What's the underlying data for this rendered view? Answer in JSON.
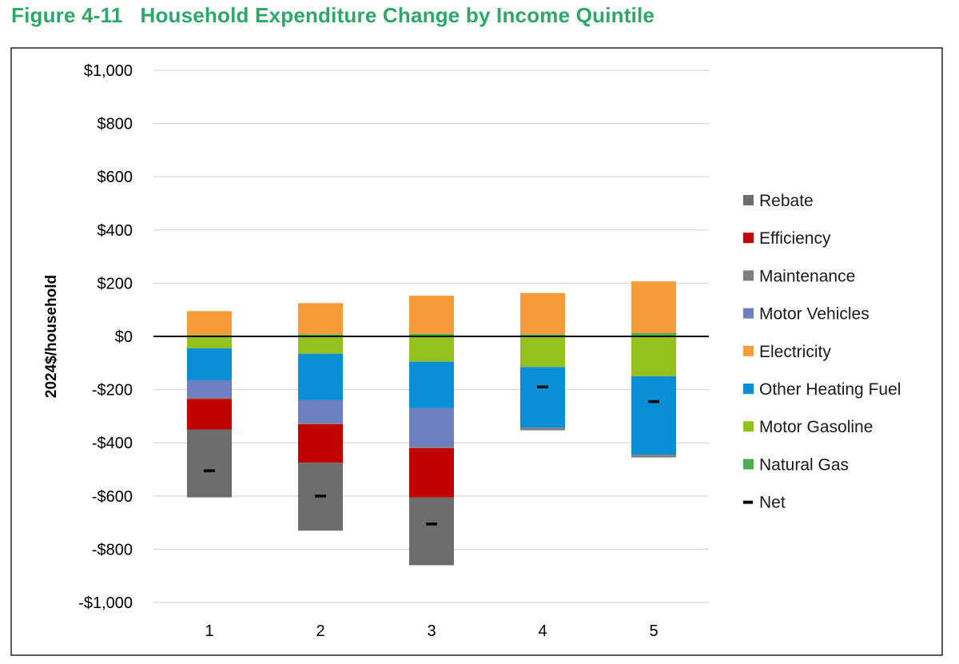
{
  "figure": {
    "number": "Figure 4-11",
    "title": "Household Expenditure Change by Income Quintile"
  },
  "chart_data": {
    "type": "bar",
    "stacked": true,
    "title": "Household Expenditure Change by Income Quintile",
    "xlabel": "",
    "ylabel": "2024$/household",
    "ylim": [
      -1000,
      1000
    ],
    "ytick_values": [
      1000,
      800,
      600,
      400,
      200,
      0,
      -200,
      -400,
      -600,
      -800,
      -1000
    ],
    "ytick_labels": [
      "$1,000",
      "$800",
      "$600",
      "$400",
      "$200",
      "$0",
      "-$200",
      "-$400",
      "-$600",
      "-$800",
      "-$1,000"
    ],
    "categories": [
      "1",
      "2",
      "3",
      "4",
      "5"
    ],
    "grid": "horizontal",
    "legend_position": "right",
    "series": [
      {
        "name": "Natural Gas",
        "color": "#4caf50",
        "values": [
          5,
          8,
          10,
          8,
          12
        ]
      },
      {
        "name": "Electricity",
        "color": "#f79c3a",
        "values": [
          90,
          117,
          143,
          155,
          195
        ]
      },
      {
        "name": "Motor Gasoline",
        "color": "#95c11f",
        "values": [
          -45,
          -65,
          -95,
          -115,
          -150
        ]
      },
      {
        "name": "Other Heating Fuel",
        "color": "#0a8fd6",
        "values": [
          -120,
          -175,
          -175,
          -228,
          -295
        ]
      },
      {
        "name": "Motor Vehicles",
        "color": "#6d7fc1",
        "values": [
          -65,
          -85,
          -145,
          0,
          0
        ]
      },
      {
        "name": "Maintenance",
        "color": "#7f7f7f",
        "values": [
          -5,
          -5,
          -5,
          -10,
          -10
        ]
      },
      {
        "name": "Efficiency",
        "color": "#c00000",
        "values": [
          -115,
          -145,
          -185,
          0,
          0
        ]
      },
      {
        "name": "Rebate",
        "color": "#6d6d6d",
        "values": [
          -255,
          -255,
          -255,
          0,
          0
        ]
      }
    ],
    "net": {
      "name": "Net",
      "color": "#000000",
      "values": [
        -505,
        -600,
        -705,
        -190,
        -245
      ]
    },
    "legend": [
      {
        "label": "Rebate",
        "color": "#6d6d6d",
        "marker": "square"
      },
      {
        "label": "Efficiency",
        "color": "#c00000",
        "marker": "square"
      },
      {
        "label": "Maintenance",
        "color": "#7f7f7f",
        "marker": "square"
      },
      {
        "label": "Motor Vehicles",
        "color": "#6d7fc1",
        "marker": "square"
      },
      {
        "label": "Electricity",
        "color": "#f79c3a",
        "marker": "square"
      },
      {
        "label": "Other Heating Fuel",
        "color": "#0a8fd6",
        "marker": "square"
      },
      {
        "label": "Motor Gasoline",
        "color": "#95c11f",
        "marker": "square"
      },
      {
        "label": "Natural Gas",
        "color": "#4caf50",
        "marker": "square"
      },
      {
        "label": "Net",
        "color": "#000000",
        "marker": "dash"
      }
    ]
  }
}
